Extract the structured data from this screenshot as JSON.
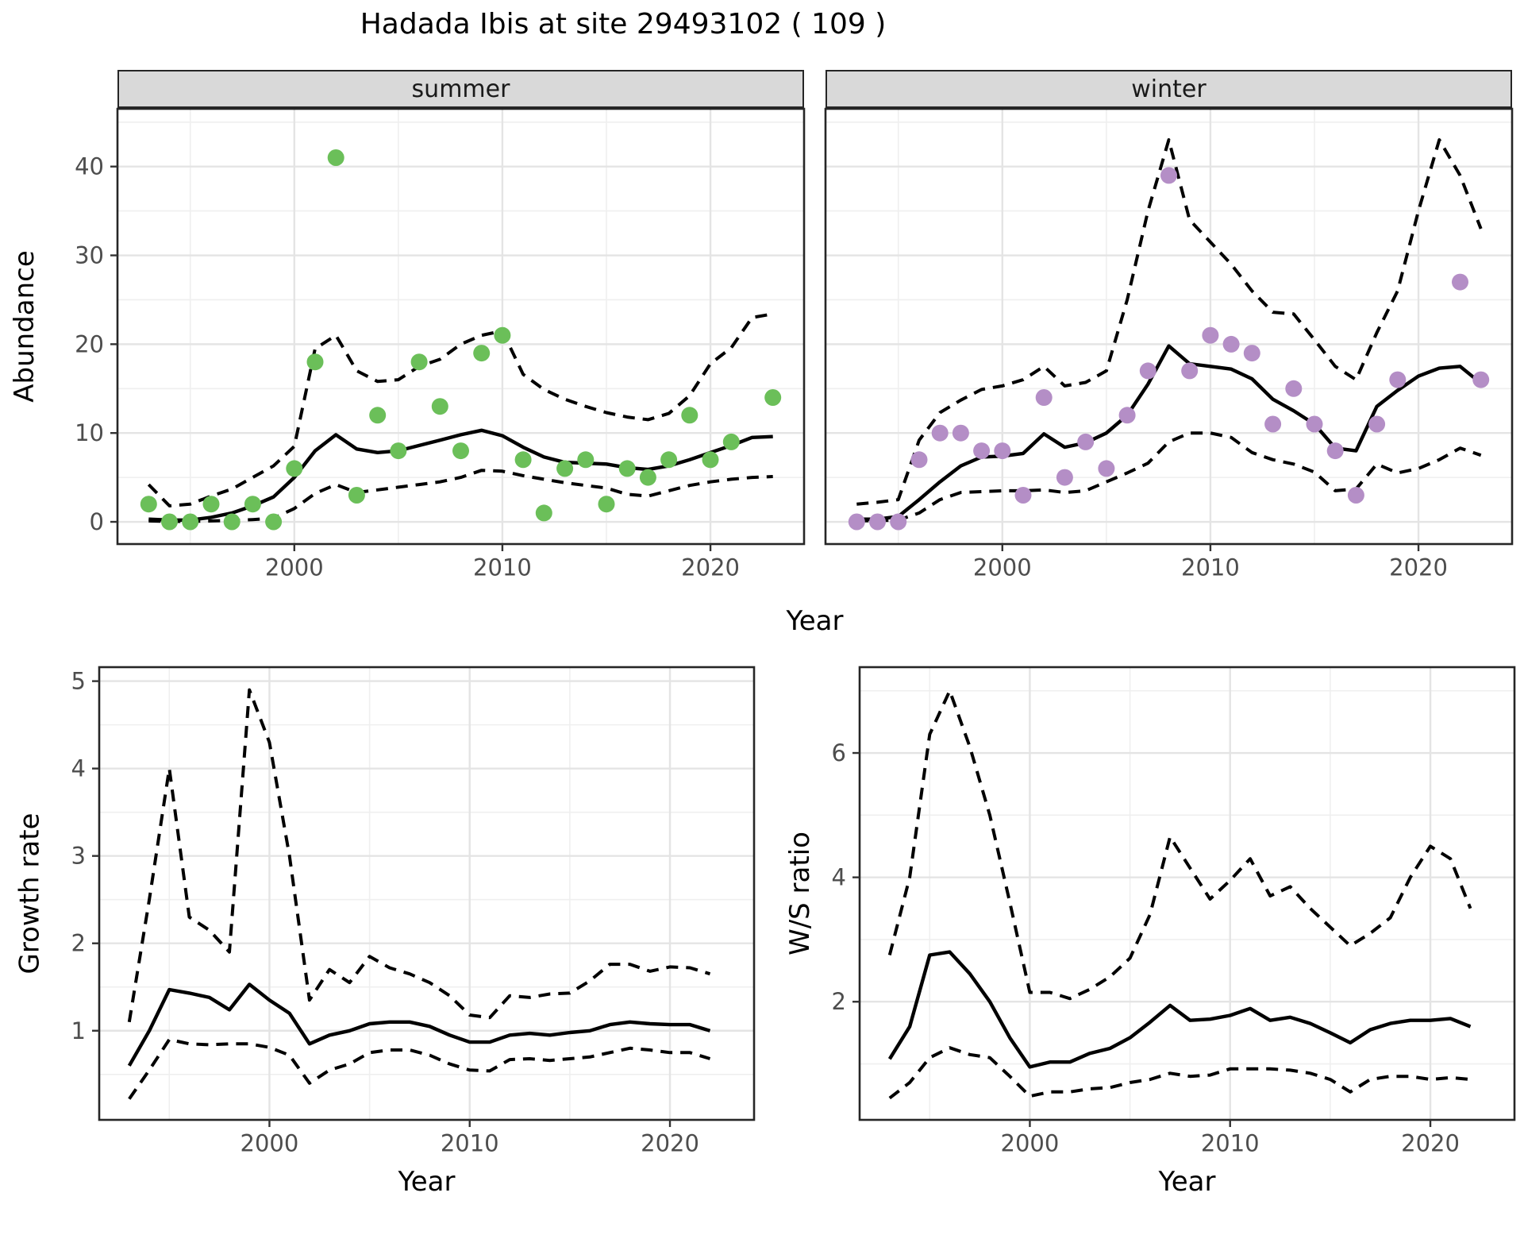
{
  "title": "Hadada Ibis at site 29493102 ( 109 )",
  "colors": {
    "summer_point": "#6bbf59",
    "winter_point": "#b48ec6",
    "line": "#000000",
    "grid_major": "#e4e4e4",
    "grid_minor": "#efefef",
    "panel_border": "#262626",
    "strip_bg": "#d9d9d9",
    "tick_label": "#4d4d4d"
  },
  "chart_data": [
    {
      "type": "scatter",
      "facet": "summer",
      "xlabel": "Year",
      "ylabel": "Abundance",
      "xlim": [
        1991.5,
        2024.5
      ],
      "ylim": [
        -2.5,
        46.5
      ],
      "xticks": [
        2000,
        2010,
        2020
      ],
      "xticks_minor": [
        1995,
        2005,
        2015
      ],
      "yticks": [
        0,
        10,
        20,
        30,
        40
      ],
      "yticks_minor": [
        5,
        15,
        25,
        35,
        45
      ],
      "point_color": "#6bbf59",
      "points": {
        "x": [
          1993,
          1994,
          1995,
          1996,
          1997,
          1998,
          1999,
          2000,
          2001,
          2002,
          2003,
          2004,
          2005,
          2006,
          2007,
          2008,
          2009,
          2010,
          2011,
          2012,
          2013,
          2014,
          2015,
          2016,
          2017,
          2018,
          2019,
          2020,
          2021,
          2023
        ],
        "y": [
          2,
          0,
          0,
          2,
          0,
          2,
          0,
          6,
          18,
          41,
          3,
          12,
          8,
          18,
          13,
          8,
          19,
          21,
          7,
          1,
          6,
          7,
          2,
          6,
          5,
          7,
          12,
          7,
          9,
          14
        ]
      },
      "series": [
        {
          "name": "upper_ci",
          "style": "dashed",
          "x": [
            1993,
            1994,
            1995,
            1996,
            1997,
            1998,
            1999,
            2000,
            2001,
            2002,
            2003,
            2004,
            2005,
            2006,
            2007,
            2008,
            2009,
            2010,
            2011,
            2012,
            2013,
            2014,
            2015,
            2016,
            2017,
            2018,
            2019,
            2020,
            2021,
            2022,
            2023
          ],
          "y": [
            4.2,
            1.8,
            2.0,
            2.9,
            3.7,
            5.0,
            6.3,
            8.5,
            19.5,
            21.0,
            17.0,
            15.8,
            16.0,
            17.5,
            18.3,
            20.0,
            21.0,
            21.5,
            16.6,
            14.9,
            13.8,
            13.0,
            12.3,
            11.8,
            11.5,
            12.2,
            14.2,
            17.8,
            19.6,
            23.0,
            23.4
          ]
        },
        {
          "name": "fit",
          "style": "solid",
          "x": [
            1993,
            1994,
            1995,
            1996,
            1997,
            1998,
            1999,
            2000,
            2001,
            2002,
            2003,
            2004,
            2005,
            2006,
            2007,
            2008,
            2009,
            2010,
            2011,
            2012,
            2013,
            2014,
            2015,
            2016,
            2017,
            2018,
            2019,
            2020,
            2021,
            2022,
            2023
          ],
          "y": [
            0.3,
            0.2,
            0.2,
            0.5,
            1.0,
            1.8,
            2.8,
            5.0,
            8.0,
            9.8,
            8.2,
            7.8,
            8.0,
            8.6,
            9.2,
            9.8,
            10.3,
            9.7,
            8.4,
            7.3,
            6.7,
            6.6,
            6.5,
            6.1,
            5.9,
            6.3,
            7.0,
            7.8,
            8.6,
            9.5,
            9.6
          ]
        },
        {
          "name": "lower_ci",
          "style": "dashed",
          "x": [
            1993,
            1994,
            1995,
            1996,
            1997,
            1998,
            1999,
            2000,
            2001,
            2002,
            2003,
            2004,
            2005,
            2006,
            2007,
            2008,
            2009,
            2010,
            2011,
            2012,
            2013,
            2014,
            2015,
            2016,
            2017,
            2018,
            2019,
            2020,
            2021,
            2022,
            2023
          ],
          "y": [
            0.1,
            0.05,
            0.05,
            0.1,
            0.15,
            0.25,
            0.4,
            1.5,
            3.2,
            4.2,
            3.3,
            3.6,
            3.9,
            4.2,
            4.5,
            5.0,
            5.8,
            5.7,
            5.2,
            4.8,
            4.4,
            4.1,
            3.8,
            3.1,
            2.9,
            3.5,
            4.1,
            4.5,
            4.8,
            5.0,
            5.1
          ]
        }
      ]
    },
    {
      "type": "scatter",
      "facet": "winter",
      "xlabel": "Year",
      "ylabel": "Abundance",
      "xlim": [
        1991.5,
        2024.5
      ],
      "ylim": [
        -2.5,
        46.5
      ],
      "xticks": [
        2000,
        2010,
        2020
      ],
      "xticks_minor": [
        1995,
        2005,
        2015
      ],
      "yticks": [
        0,
        10,
        20,
        30,
        40
      ],
      "yticks_minor": [
        5,
        15,
        25,
        35,
        45
      ],
      "point_color": "#b48ec6",
      "points": {
        "x": [
          1993,
          1994,
          1995,
          1996,
          1997,
          1998,
          1999,
          2000,
          2001,
          2002,
          2003,
          2004,
          2005,
          2006,
          2007,
          2008,
          2009,
          2010,
          2011,
          2012,
          2013,
          2014,
          2015,
          2016,
          2017,
          2018,
          2019,
          2022,
          2023
        ],
        "y": [
          0,
          0,
          0,
          7,
          10,
          10,
          8,
          8,
          3,
          14,
          5,
          9,
          6,
          12,
          17,
          39,
          17,
          21,
          20,
          19,
          11,
          15,
          11,
          8,
          3,
          11,
          16,
          27,
          16
        ]
      },
      "series": [
        {
          "name": "upper_ci",
          "style": "dashed",
          "x": [
            1993,
            1994,
            1995,
            1996,
            1997,
            1998,
            1999,
            2000,
            2001,
            2002,
            2003,
            2004,
            2005,
            2006,
            2007,
            2008,
            2009,
            2010,
            2011,
            2012,
            2013,
            2014,
            2015,
            2016,
            2017,
            2018,
            2019,
            2020,
            2021,
            2022,
            2023
          ],
          "y": [
            2.0,
            2.2,
            2.5,
            9.2,
            12.3,
            13.7,
            14.9,
            15.3,
            16.0,
            17.5,
            15.3,
            15.7,
            17.0,
            25.0,
            35.0,
            43.0,
            34.0,
            31.5,
            29.0,
            26.0,
            23.6,
            23.4,
            20.5,
            17.5,
            16.0,
            21.3,
            26.0,
            35.0,
            43.0,
            39.0,
            33.0
          ]
        },
        {
          "name": "fit",
          "style": "solid",
          "x": [
            1993,
            1994,
            1995,
            1996,
            1997,
            1998,
            1999,
            2000,
            2001,
            2002,
            2003,
            2004,
            2005,
            2006,
            2007,
            2008,
            2009,
            2010,
            2011,
            2012,
            2013,
            2014,
            2015,
            2016,
            2017,
            2018,
            2019,
            2020,
            2021,
            2022,
            2023
          ],
          "y": [
            0.3,
            0.3,
            0.6,
            2.5,
            4.5,
            6.3,
            7.3,
            7.4,
            7.7,
            9.9,
            8.4,
            8.9,
            10.0,
            12.0,
            15.5,
            19.8,
            17.8,
            17.5,
            17.2,
            16.1,
            13.8,
            12.5,
            11.0,
            8.3,
            8.0,
            13.0,
            14.8,
            16.4,
            17.3,
            17.5,
            15.6
          ]
        },
        {
          "name": "lower_ci",
          "style": "dashed",
          "x": [
            1993,
            1994,
            1995,
            1996,
            1997,
            1998,
            1999,
            2000,
            2001,
            2002,
            2003,
            2004,
            2005,
            2006,
            2007,
            2008,
            2009,
            2010,
            2011,
            2012,
            2013,
            2014,
            2015,
            2016,
            2017,
            2018,
            2019,
            2020,
            2021,
            2022,
            2023
          ],
          "y": [
            0.1,
            0.15,
            0.2,
            1.0,
            2.5,
            3.3,
            3.4,
            3.5,
            3.5,
            3.6,
            3.3,
            3.5,
            4.5,
            5.5,
            6.6,
            9.0,
            10.0,
            10.0,
            9.5,
            7.8,
            7.0,
            6.5,
            5.6,
            3.5,
            3.7,
            6.5,
            5.5,
            6.0,
            7.0,
            8.3,
            7.5
          ]
        }
      ]
    },
    {
      "type": "line",
      "facet": null,
      "xlabel": "Year",
      "ylabel": "Growth rate",
      "xlim": [
        1991.5,
        2024.2
      ],
      "ylim": [
        -0.02,
        5.16
      ],
      "xticks": [
        2000,
        2010,
        2020
      ],
      "xticks_minor": [
        1995,
        2005,
        2015
      ],
      "yticks": [
        1,
        2,
        3,
        4,
        5
      ],
      "yticks_minor": [
        0.5,
        1.5,
        2.5,
        3.5,
        4.5
      ],
      "point_color": null,
      "points": {
        "x": [],
        "y": []
      },
      "series": [
        {
          "name": "upper_ci",
          "style": "dashed",
          "x": [
            1993,
            1994,
            1995,
            1996,
            1997,
            1998,
            1999,
            2000,
            2001,
            2002,
            2003,
            2004,
            2005,
            2006,
            2007,
            2008,
            2009,
            2010,
            2011,
            2012,
            2013,
            2014,
            2015,
            2016,
            2017,
            2018,
            2019,
            2020,
            2021,
            2022
          ],
          "y": [
            1.1,
            2.5,
            4.0,
            2.3,
            2.15,
            1.9,
            4.9,
            4.3,
            3.0,
            1.35,
            1.7,
            1.55,
            1.85,
            1.72,
            1.65,
            1.55,
            1.4,
            1.18,
            1.15,
            1.4,
            1.38,
            1.42,
            1.43,
            1.57,
            1.76,
            1.76,
            1.68,
            1.73,
            1.72,
            1.65
          ]
        },
        {
          "name": "fit",
          "style": "solid",
          "x": [
            1993,
            1994,
            1995,
            1996,
            1997,
            1998,
            1999,
            2000,
            2001,
            2002,
            2003,
            2004,
            2005,
            2006,
            2007,
            2008,
            2009,
            2010,
            2011,
            2012,
            2013,
            2014,
            2015,
            2016,
            2017,
            2018,
            2019,
            2020,
            2021,
            2022
          ],
          "y": [
            0.6,
            1.0,
            1.47,
            1.43,
            1.38,
            1.24,
            1.53,
            1.35,
            1.2,
            0.85,
            0.95,
            1.0,
            1.08,
            1.1,
            1.1,
            1.05,
            0.95,
            0.87,
            0.87,
            0.95,
            0.97,
            0.95,
            0.98,
            1.0,
            1.07,
            1.1,
            1.08,
            1.07,
            1.07,
            1.0
          ]
        },
        {
          "name": "lower_ci",
          "style": "dashed",
          "x": [
            1993,
            1994,
            1995,
            1996,
            1997,
            1998,
            1999,
            2000,
            2001,
            2002,
            2003,
            2004,
            2005,
            2006,
            2007,
            2008,
            2009,
            2010,
            2011,
            2012,
            2013,
            2014,
            2015,
            2016,
            2017,
            2018,
            2019,
            2020,
            2021,
            2022
          ],
          "y": [
            0.22,
            0.55,
            0.9,
            0.85,
            0.84,
            0.85,
            0.85,
            0.81,
            0.72,
            0.4,
            0.55,
            0.62,
            0.75,
            0.78,
            0.78,
            0.72,
            0.62,
            0.55,
            0.54,
            0.67,
            0.68,
            0.66,
            0.68,
            0.7,
            0.75,
            0.8,
            0.78,
            0.75,
            0.75,
            0.68
          ]
        }
      ]
    },
    {
      "type": "line",
      "facet": null,
      "xlabel": "Year",
      "ylabel": "W/S ratio",
      "xlim": [
        1991.5,
        2024.2
      ],
      "ylim": [
        0.1,
        7.38
      ],
      "xticks": [
        2000,
        2010,
        2020
      ],
      "xticks_minor": [
        1995,
        2005,
        2015
      ],
      "yticks": [
        2,
        4,
        6
      ],
      "yticks_minor": [
        1,
        3,
        5,
        7
      ],
      "point_color": null,
      "points": {
        "x": [],
        "y": []
      },
      "series": [
        {
          "name": "upper_ci",
          "style": "dashed",
          "x": [
            1993,
            1994,
            1995,
            1996,
            1997,
            1998,
            1999,
            2000,
            2001,
            2002,
            2003,
            2004,
            2005,
            2006,
            2007,
            2008,
            2009,
            2010,
            2011,
            2012,
            2013,
            2014,
            2015,
            2016,
            2017,
            2018,
            2019,
            2020,
            2021,
            2022
          ],
          "y": [
            2.75,
            4.0,
            6.3,
            7.0,
            6.1,
            5.0,
            3.6,
            2.15,
            2.15,
            2.05,
            2.2,
            2.4,
            2.7,
            3.4,
            4.65,
            4.15,
            3.65,
            3.95,
            4.3,
            3.7,
            3.85,
            3.5,
            3.2,
            2.9,
            3.1,
            3.35,
            4.0,
            4.5,
            4.3,
            3.5
          ]
        },
        {
          "name": "fit",
          "style": "solid",
          "x": [
            1993,
            1994,
            1995,
            1996,
            1997,
            1998,
            1999,
            2000,
            2001,
            2002,
            2003,
            2004,
            2005,
            2006,
            2007,
            2008,
            2009,
            2010,
            2011,
            2012,
            2013,
            2014,
            2015,
            2016,
            2017,
            2018,
            2019,
            2020,
            2021,
            2022
          ],
          "y": [
            1.08,
            1.6,
            2.75,
            2.8,
            2.45,
            2.0,
            1.42,
            0.95,
            1.03,
            1.03,
            1.17,
            1.25,
            1.42,
            1.67,
            1.94,
            1.7,
            1.72,
            1.78,
            1.89,
            1.7,
            1.75,
            1.65,
            1.5,
            1.34,
            1.55,
            1.65,
            1.7,
            1.7,
            1.73,
            1.6
          ]
        },
        {
          "name": "lower_ci",
          "style": "dashed",
          "x": [
            1993,
            1994,
            1995,
            1996,
            1997,
            1998,
            1999,
            2000,
            2001,
            2002,
            2003,
            2004,
            2005,
            2006,
            2007,
            2008,
            2009,
            2010,
            2011,
            2012,
            2013,
            2014,
            2015,
            2016,
            2017,
            2018,
            2019,
            2020,
            2021,
            2022
          ],
          "y": [
            0.45,
            0.7,
            1.1,
            1.26,
            1.15,
            1.1,
            0.8,
            0.48,
            0.55,
            0.55,
            0.6,
            0.62,
            0.7,
            0.75,
            0.85,
            0.8,
            0.82,
            0.92,
            0.92,
            0.92,
            0.9,
            0.85,
            0.75,
            0.55,
            0.75,
            0.8,
            0.8,
            0.75,
            0.78,
            0.75
          ]
        }
      ]
    }
  ]
}
